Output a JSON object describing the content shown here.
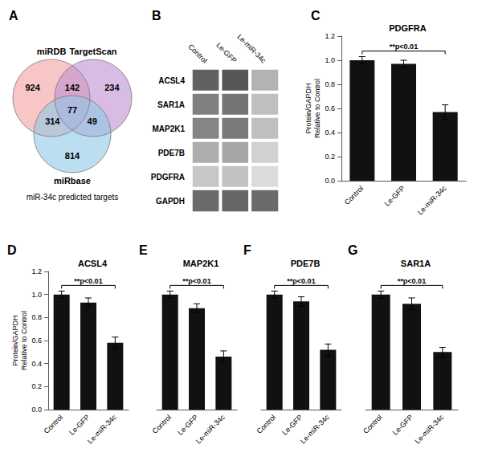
{
  "chart_data": [
    {
      "type": "venn",
      "panel": "A",
      "sets": [
        {
          "name": "miRDB",
          "color": "#F4A0A0"
        },
        {
          "name": "TargetScan",
          "color": "#C090D0"
        },
        {
          "name": "miRbase",
          "color": "#90C8E8"
        }
      ],
      "regions": [
        {
          "sets": [
            "miRDB"
          ],
          "value": 924
        },
        {
          "sets": [
            "TargetScan"
          ],
          "value": 234
        },
        {
          "sets": [
            "miRbase"
          ],
          "value": 814
        },
        {
          "sets": [
            "miRDB",
            "TargetScan"
          ],
          "value": 142
        },
        {
          "sets": [
            "miRDB",
            "miRbase"
          ],
          "value": 314
        },
        {
          "sets": [
            "TargetScan",
            "miRbase"
          ],
          "value": 49
        },
        {
          "sets": [
            "miRDB",
            "TargetScan",
            "miRbase"
          ],
          "value": 77
        }
      ],
      "caption": "miR-34c predicted targets"
    },
    {
      "type": "heatmap",
      "panel": "B",
      "x": [
        "Control",
        "Le-GFP",
        "Le-miR-34c"
      ],
      "y": [
        "ACSL4",
        "SAR1A",
        "MAP2K1",
        "PDE7B",
        "PDGFRA",
        "GAPDH"
      ],
      "cells": [
        [
          0.62,
          0.66,
          0.3
        ],
        [
          0.5,
          0.54,
          0.25
        ],
        [
          0.48,
          0.52,
          0.25
        ],
        [
          0.32,
          0.35,
          0.18
        ],
        [
          0.22,
          0.24,
          0.14
        ],
        [
          0.58,
          0.6,
          0.58
        ]
      ]
    },
    {
      "type": "bar",
      "panel": "C",
      "title": "PDGFRA",
      "categories": [
        "Control",
        "Le-GFP",
        "Le-miR-34c"
      ],
      "values": [
        1.0,
        0.97,
        0.57
      ],
      "errors": [
        0.03,
        0.03,
        0.06
      ],
      "color": "#111111",
      "ylabel": "Protein/GAPDH\nRelative to Control",
      "ylim": [
        0,
        1.2
      ],
      "yticks": [
        {
          "value": 0,
          "label": "0.0"
        },
        0.2,
        0.4,
        0.6,
        0.8,
        {
          "value": 1.0,
          "label": "1.0"
        },
        1.2
      ],
      "grid": false,
      "annotation": {
        "text": "**p<0.01",
        "from": "Control",
        "to": "Le-miR-34c"
      }
    },
    {
      "type": "bar",
      "panel": "D",
      "title": "ACSL4",
      "categories": [
        "Control",
        "Le-GFP",
        "Le-miR-34c"
      ],
      "values": [
        1.0,
        0.93,
        0.58
      ],
      "errors": [
        0.03,
        0.04,
        0.05
      ],
      "color": "#111111",
      "ylabel": "Protein/GAPDH\nRelative to Control",
      "ylim": [
        0,
        1.2
      ],
      "yticks": [
        {
          "value": 0,
          "label": "0.0"
        },
        0.2,
        0.4,
        0.6,
        0.8,
        {
          "value": 1.0,
          "label": "1.0"
        },
        1.2
      ],
      "grid": false,
      "annotation": {
        "text": "**p<0.01",
        "from": "Control",
        "to": "Le-miR-34c"
      }
    },
    {
      "type": "bar",
      "panel": "E",
      "title": "MAP2K1",
      "categories": [
        "Control",
        "Le-GFP",
        "Le-miR-34c"
      ],
      "values": [
        1.0,
        0.88,
        0.46
      ],
      "errors": [
        0.03,
        0.04,
        0.05
      ],
      "color": "#111111",
      "ylim": [
        0,
        1.2
      ],
      "yticks": [
        {
          "value": 0,
          "label": "0.0"
        },
        0.2,
        0.4,
        0.6,
        0.8,
        {
          "value": 1.0,
          "label": "1.0"
        },
        1.2
      ],
      "grid": false,
      "tick_labels": "x",
      "annotation": {
        "text": "**p<0.01",
        "from": "Control",
        "to": "Le-miR-34c"
      }
    },
    {
      "type": "bar",
      "panel": "F",
      "title": "PDE7B",
      "categories": [
        "Control",
        "Le-GFP",
        "Le-miR-34c"
      ],
      "values": [
        1.0,
        0.94,
        0.52
      ],
      "errors": [
        0.03,
        0.04,
        0.05
      ],
      "color": "#111111",
      "ylim": [
        0,
        1.2
      ],
      "yticks": [
        {
          "value": 0,
          "label": "0.0"
        },
        0.2,
        0.4,
        0.6,
        0.8,
        {
          "value": 1.0,
          "label": "1.0"
        },
        1.2
      ],
      "grid": false,
      "tick_labels": "x",
      "annotation": {
        "text": "**p<0.01",
        "from": "Control",
        "to": "Le-miR-34c"
      }
    },
    {
      "type": "bar",
      "panel": "G",
      "title": "SAR1A",
      "categories": [
        "Control",
        "Le-GFP",
        "Le-miR-34c"
      ],
      "values": [
        1.0,
        0.92,
        0.5
      ],
      "errors": [
        0.03,
        0.05,
        0.04
      ],
      "color": "#111111",
      "ylim": [
        0,
        1.2
      ],
      "yticks": [
        {
          "value": 0,
          "label": "0.0"
        },
        0.2,
        0.4,
        0.6,
        0.8,
        {
          "value": 1.0,
          "label": "1.0"
        },
        1.2
      ],
      "grid": false,
      "tick_labels": "x",
      "annotation": {
        "text": "**p<0.01",
        "from": "Control",
        "to": "Le-miR-34c"
      }
    }
  ]
}
